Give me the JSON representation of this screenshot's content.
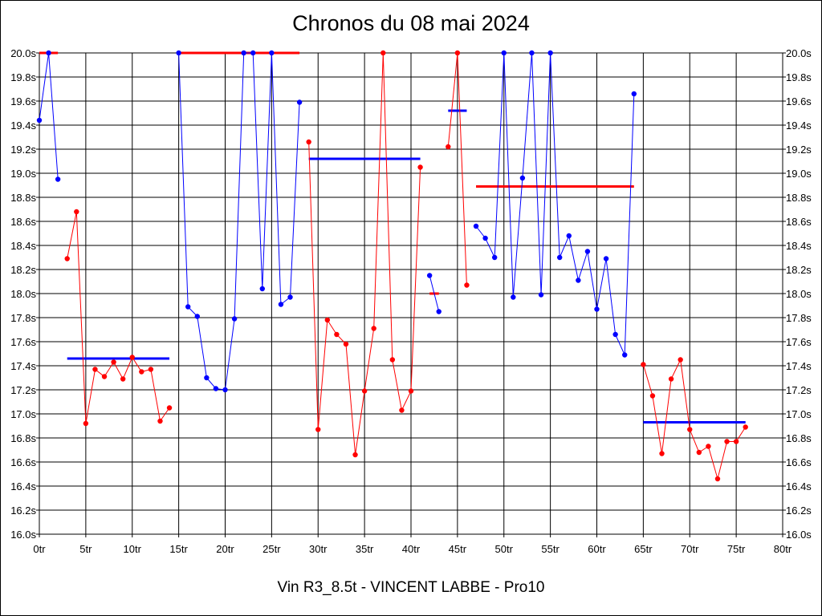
{
  "chart_data": {
    "type": "line",
    "title": "Chronos du 08 mai 2024",
    "xlabel": "Vin R3_8.5t - VINCENT LABBE - Pro10",
    "ylabel": "",
    "xlim": [
      0,
      80
    ],
    "ylim": [
      16.0,
      20.0
    ],
    "grid": true,
    "x_ticks": [
      "0tr",
      "5tr",
      "10tr",
      "15tr",
      "20tr",
      "25tr",
      "30tr",
      "35tr",
      "40tr",
      "45tr",
      "50tr",
      "55tr",
      "60tr",
      "65tr",
      "70tr",
      "75tr",
      "80tr"
    ],
    "y_ticks": [
      "16.0s",
      "16.2s",
      "16.4s",
      "16.6s",
      "16.8s",
      "17.0s",
      "17.2s",
      "17.4s",
      "17.6s",
      "17.8s",
      "18.0s",
      "18.2s",
      "18.4s",
      "18.6s",
      "18.8s",
      "19.0s",
      "19.2s",
      "19.4s",
      "19.6s",
      "19.8s",
      "20.0s"
    ],
    "colors": {
      "blue": "#0000ff",
      "red": "#ff0000",
      "grid": "#000000"
    },
    "segments": [
      {
        "color": "blue",
        "x": [
          0,
          1,
          2
        ],
        "y": [
          19.44,
          20.0,
          18.95
        ]
      },
      {
        "color": "red",
        "x": [
          3,
          4,
          5,
          6,
          7,
          8,
          9,
          10,
          11,
          12,
          13,
          14
        ],
        "y": [
          18.29,
          18.68,
          16.92,
          17.37,
          17.31,
          17.43,
          17.29,
          17.47,
          17.35,
          17.37,
          16.94,
          17.05
        ]
      },
      {
        "color": "blue",
        "x": [
          15,
          16,
          17,
          18,
          19,
          20,
          21,
          22,
          23,
          24,
          25,
          26,
          27,
          28
        ],
        "y": [
          20.0,
          17.89,
          17.81,
          17.3,
          17.21,
          17.2,
          17.79,
          20.0,
          20.0,
          18.04,
          20.0,
          17.91,
          17.97,
          19.59
        ]
      },
      {
        "color": "red",
        "x": [
          29,
          30,
          31,
          32,
          33,
          34,
          35,
          36,
          37,
          38,
          39,
          40,
          41
        ],
        "y": [
          19.26,
          16.87,
          17.78,
          17.66,
          17.58,
          16.66,
          17.19,
          17.71,
          20.0,
          17.45,
          17.03,
          17.19,
          19.05
        ]
      },
      {
        "color": "blue",
        "x": [
          42,
          43
        ],
        "y": [
          18.15,
          17.85
        ]
      },
      {
        "color": "red",
        "x": [
          44,
          45,
          46
        ],
        "y": [
          19.22,
          20.0,
          18.07
        ]
      },
      {
        "color": "blue",
        "x": [
          47,
          48,
          49,
          50,
          51,
          52,
          53,
          54,
          55,
          56,
          57,
          58,
          59,
          60,
          61,
          62,
          63,
          64
        ],
        "y": [
          18.56,
          18.46,
          18.3,
          20.0,
          17.97,
          18.96,
          20.0,
          17.99,
          20.0,
          18.3,
          18.48,
          18.11,
          18.35,
          17.87,
          18.29,
          17.66,
          17.49,
          19.66
        ]
      },
      {
        "color": "red",
        "x": [
          65,
          66,
          67,
          68,
          69,
          70,
          71,
          72,
          73,
          74,
          75,
          76
        ],
        "y": [
          17.41,
          17.15,
          16.67,
          17.29,
          17.45,
          16.87,
          16.68,
          16.73,
          16.46,
          16.77,
          16.77,
          16.89
        ]
      }
    ],
    "averages": [
      {
        "color": "red",
        "x_start": 0,
        "x_end": 2,
        "y": 20.0
      },
      {
        "color": "blue",
        "x_start": 3,
        "x_end": 14,
        "y": 17.46
      },
      {
        "color": "red",
        "x_start": 15,
        "x_end": 28,
        "y": 20.0
      },
      {
        "color": "blue",
        "x_start": 29,
        "x_end": 41,
        "y": 19.12
      },
      {
        "color": "red",
        "x_start": 42,
        "x_end": 43,
        "y": 18.0
      },
      {
        "color": "blue",
        "x_start": 44,
        "x_end": 46,
        "y": 19.52
      },
      {
        "color": "red",
        "x_start": 47,
        "x_end": 64,
        "y": 18.89
      },
      {
        "color": "blue",
        "x_start": 65,
        "x_end": 76,
        "y": 16.93
      }
    ]
  }
}
